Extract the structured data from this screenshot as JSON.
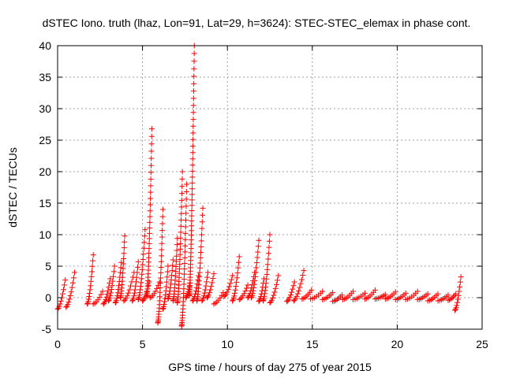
{
  "chart_data": {
    "type": "scatter",
    "title": "dSTEC Iono. truth (lhaz, Lon=91, Lat=29, h=3624): STEC-STEC_elemax in phase cont.",
    "xlabel": "GPS time / hours of day 275 of year 2015",
    "ylabel": "dSTEC  / TECUs",
    "xlim": [
      0,
      25
    ],
    "ylim": [
      -5,
      40
    ],
    "x_ticks": [
      0,
      5,
      10,
      15,
      20,
      25
    ],
    "y_ticks": [
      -5,
      0,
      5,
      10,
      15,
      20,
      25,
      30,
      35,
      40
    ],
    "x_tick_labels": [
      "0",
      "5",
      "10",
      "15",
      "20",
      "25"
    ],
    "y_tick_labels": [
      "-5",
      "0",
      "5",
      "10",
      "15",
      "20",
      "25",
      "30",
      "35",
      "40"
    ],
    "grid": true,
    "marker": "+",
    "series_color": "#ff0000",
    "arcs": [
      {
        "x_start": 0.0,
        "x_end": 0.45,
        "y_start": -1.8,
        "y_end": 2.8
      },
      {
        "x_start": 0.5,
        "x_end": 1.0,
        "y_start": -1.5,
        "y_end": 4.0
      },
      {
        "x_start": 1.75,
        "x_end": 2.1,
        "y_start": -1.0,
        "y_end": 6.8
      },
      {
        "x_start": 2.1,
        "x_end": 2.65,
        "y_start": -1.0,
        "y_end": 1.0
      },
      {
        "x_start": 2.7,
        "x_end": 3.1,
        "y_start": -1.0,
        "y_end": 3.0
      },
      {
        "x_start": 3.0,
        "x_end": 3.35,
        "y_start": -0.5,
        "y_end": 5.0
      },
      {
        "x_start": 3.4,
        "x_end": 3.75,
        "y_start": -0.8,
        "y_end": 5.6
      },
      {
        "x_start": 3.7,
        "x_end": 3.95,
        "y_start": 0.0,
        "y_end": 9.8
      },
      {
        "x_start": 3.9,
        "x_end": 4.5,
        "y_start": -0.5,
        "y_end": 4.0
      },
      {
        "x_start": 4.4,
        "x_end": 4.75,
        "y_start": -0.5,
        "y_end": 5.7
      },
      {
        "x_start": 4.75,
        "x_end": 5.15,
        "y_start": -0.3,
        "y_end": 10.8
      },
      {
        "x_start": 5.0,
        "x_end": 5.4,
        "y_start": -0.5,
        "y_end": 2.5
      },
      {
        "x_start": 5.25,
        "x_end": 5.55,
        "y_start": 0.2,
        "y_end": 26.8
      },
      {
        "x_start": 5.45,
        "x_end": 6.0,
        "y_start": 0.0,
        "y_end": 2.5
      },
      {
        "x_start": 5.9,
        "x_end": 6.2,
        "y_start": -4.0,
        "y_end": 14.0
      },
      {
        "x_start": 6.2,
        "x_end": 6.5,
        "y_start": -1.8,
        "y_end": 5.0
      },
      {
        "x_start": 6.5,
        "x_end": 6.8,
        "y_start": -0.2,
        "y_end": 6.0
      },
      {
        "x_start": 6.8,
        "x_end": 7.05,
        "y_start": -0.5,
        "y_end": 9.4
      },
      {
        "x_start": 7.05,
        "x_end": 7.35,
        "y_start": -0.8,
        "y_end": 20.0
      },
      {
        "x_start": 7.3,
        "x_end": 7.6,
        "y_start": -4.5,
        "y_end": 18.0
      },
      {
        "x_start": 7.55,
        "x_end": 7.8,
        "y_start": 0.0,
        "y_end": 2.3
      },
      {
        "x_start": 7.75,
        "x_end": 8.05,
        "y_start": 0.3,
        "y_end": 40.0
      },
      {
        "x_start": 7.95,
        "x_end": 8.3,
        "y_start": -0.5,
        "y_end": 3.5
      },
      {
        "x_start": 8.2,
        "x_end": 8.55,
        "y_start": -0.5,
        "y_end": 14.2
      },
      {
        "x_start": 8.5,
        "x_end": 8.85,
        "y_start": -0.5,
        "y_end": 4.0
      },
      {
        "x_start": 8.8,
        "x_end": 9.2,
        "y_start": 0.0,
        "y_end": 3.8
      },
      {
        "x_start": 9.2,
        "x_end": 9.75,
        "y_start": -1.0,
        "y_end": 0.8
      },
      {
        "x_start": 9.8,
        "x_end": 10.3,
        "y_start": 0.2,
        "y_end": 3.5
      },
      {
        "x_start": 10.3,
        "x_end": 10.7,
        "y_start": -0.5,
        "y_end": 6.5
      },
      {
        "x_start": 10.7,
        "x_end": 11.2,
        "y_start": -0.3,
        "y_end": 2.0
      },
      {
        "x_start": 11.2,
        "x_end": 11.6,
        "y_start": 0.0,
        "y_end": 4.0
      },
      {
        "x_start": 11.4,
        "x_end": 11.85,
        "y_start": 0.0,
        "y_end": 9.1
      },
      {
        "x_start": 11.85,
        "x_end": 12.15,
        "y_start": -0.6,
        "y_end": 3.0
      },
      {
        "x_start": 12.1,
        "x_end": 12.5,
        "y_start": -0.5,
        "y_end": 10.0
      },
      {
        "x_start": 12.5,
        "x_end": 13.0,
        "y_start": -0.8,
        "y_end": 3.5
      },
      {
        "x_start": 13.5,
        "x_end": 13.95,
        "y_start": -0.6,
        "y_end": 2.5
      },
      {
        "x_start": 13.9,
        "x_end": 14.5,
        "y_start": -0.5,
        "y_end": 4.3
      },
      {
        "x_start": 14.4,
        "x_end": 14.95,
        "y_start": -0.2,
        "y_end": 1.2
      },
      {
        "x_start": 14.9,
        "x_end": 15.6,
        "y_start": -0.2,
        "y_end": 1.0
      },
      {
        "x_start": 15.6,
        "x_end": 16.2,
        "y_start": -0.3,
        "y_end": 0.8
      },
      {
        "x_start": 16.2,
        "x_end": 16.75,
        "y_start": -0.6,
        "y_end": 0.4
      },
      {
        "x_start": 16.8,
        "x_end": 17.4,
        "y_start": -0.3,
        "y_end": 1.0
      },
      {
        "x_start": 17.4,
        "x_end": 18.1,
        "y_start": -0.3,
        "y_end": 0.7
      },
      {
        "x_start": 18.1,
        "x_end": 18.7,
        "y_start": -0.2,
        "y_end": 1.2
      },
      {
        "x_start": 18.7,
        "x_end": 19.3,
        "y_start": -0.2,
        "y_end": 0.5
      },
      {
        "x_start": 19.3,
        "x_end": 19.9,
        "y_start": -0.2,
        "y_end": 0.9
      },
      {
        "x_start": 19.9,
        "x_end": 20.5,
        "y_start": -0.3,
        "y_end": 0.7
      },
      {
        "x_start": 20.5,
        "x_end": 21.2,
        "y_start": -0.3,
        "y_end": 1.0
      },
      {
        "x_start": 21.2,
        "x_end": 21.8,
        "y_start": -0.3,
        "y_end": 0.6
      },
      {
        "x_start": 21.8,
        "x_end": 22.4,
        "y_start": -0.5,
        "y_end": 0.6
      },
      {
        "x_start": 22.4,
        "x_end": 23.0,
        "y_start": -0.5,
        "y_end": 0.4
      },
      {
        "x_start": 23.0,
        "x_end": 23.45,
        "y_start": -0.4,
        "y_end": 0.6
      },
      {
        "x_start": 23.4,
        "x_end": 23.75,
        "y_start": -2.0,
        "y_end": 3.3
      }
    ]
  }
}
